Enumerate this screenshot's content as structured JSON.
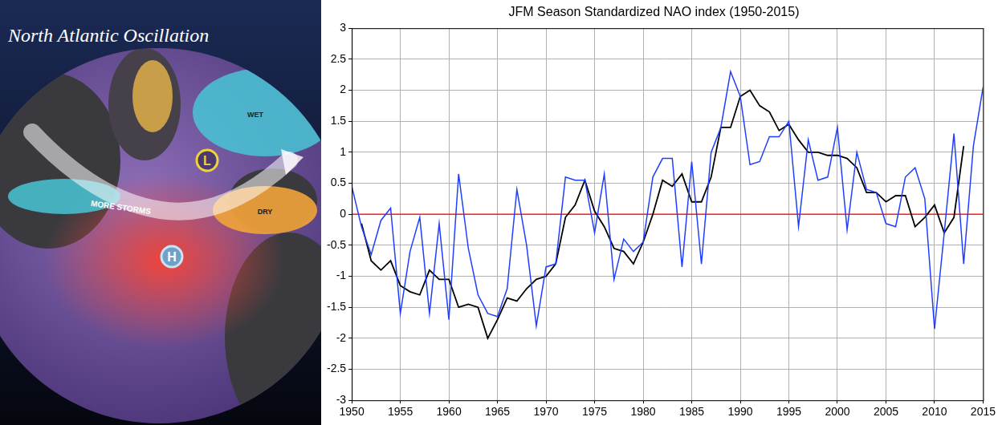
{
  "illustration": {
    "title": "North Atlantic Oscillation",
    "low": "L",
    "high": "H",
    "storms": "MORE STORMS",
    "wet": "WET",
    "dry": "DRY"
  },
  "chart_data": {
    "type": "line",
    "title": "JFM Season Standardized NAO index (1950-2015)",
    "x": [
      1950,
      1951,
      1952,
      1953,
      1954,
      1955,
      1956,
      1957,
      1958,
      1959,
      1960,
      1961,
      1962,
      1963,
      1964,
      1965,
      1966,
      1967,
      1968,
      1969,
      1970,
      1971,
      1972,
      1973,
      1974,
      1975,
      1976,
      1977,
      1978,
      1979,
      1980,
      1981,
      1982,
      1983,
      1984,
      1985,
      1986,
      1987,
      1988,
      1989,
      1990,
      1991,
      1992,
      1993,
      1994,
      1995,
      1996,
      1997,
      1998,
      1999,
      2000,
      2001,
      2002,
      2003,
      2004,
      2005,
      2006,
      2007,
      2008,
      2009,
      2010,
      2011,
      2012,
      2013,
      2014,
      2015
    ],
    "xlim": [
      1950,
      2015
    ],
    "xticks": [
      1950,
      1955,
      1960,
      1965,
      1970,
      1975,
      1980,
      1985,
      1990,
      1995,
      2000,
      2005,
      2010,
      2015
    ],
    "ylim": [
      -3,
      3
    ],
    "yticks": [
      -3,
      -2.5,
      -2,
      -1.5,
      -1,
      -0.5,
      0,
      0.5,
      1,
      1.5,
      2,
      2.5,
      3
    ],
    "grid": true,
    "series": [
      {
        "color": "#1f3fff",
        "values": [
          0.45,
          -0.2,
          -0.65,
          -0.1,
          0.1,
          -1.6,
          -0.6,
          -0.05,
          -1.6,
          -0.15,
          -1.7,
          0.65,
          -0.55,
          -1.3,
          -1.6,
          -1.65,
          -1.2,
          0.4,
          -0.5,
          -1.8,
          -0.85,
          -0.8,
          0.6,
          0.55,
          0.55,
          -0.3,
          0.65,
          -1.05,
          -0.4,
          -0.6,
          -0.45,
          0.6,
          0.9,
          0.9,
          -0.85,
          0.85,
          -0.8,
          1.0,
          1.4,
          2.3,
          1.9,
          0.8,
          0.85,
          1.25,
          1.25,
          1.5,
          -0.2,
          1.2,
          0.55,
          0.6,
          1.4,
          -0.25,
          1.0,
          0.4,
          0.35,
          -0.15,
          -0.2,
          0.6,
          0.75,
          0.25,
          -1.85,
          -0.3,
          1.3,
          -0.8,
          1.1,
          2.05
        ]
      },
      {
        "color": "#000000",
        "values": [
          null,
          -0.15,
          -0.75,
          -0.9,
          -0.75,
          -1.15,
          -1.25,
          -1.3,
          -0.9,
          -1.05,
          -1.05,
          -1.5,
          -1.45,
          -1.5,
          -2.0,
          -1.7,
          -1.35,
          -1.4,
          -1.2,
          -1.05,
          -1.0,
          -0.8,
          -0.05,
          0.15,
          0.55,
          0.05,
          -0.2,
          -0.55,
          -0.6,
          -0.8,
          -0.45,
          0.0,
          0.55,
          0.45,
          0.65,
          0.2,
          0.2,
          0.6,
          1.4,
          1.4,
          1.9,
          2.0,
          1.75,
          1.65,
          1.35,
          1.45,
          1.2,
          1.0,
          1.0,
          0.95,
          0.95,
          0.9,
          0.75,
          0.35,
          0.35,
          0.2,
          0.3,
          0.3,
          -0.2,
          -0.05,
          0.15,
          -0.3,
          -0.05,
          1.1,
          null,
          null
        ]
      },
      {
        "color": "#ff0000",
        "values": [
          0,
          0,
          0,
          0,
          0,
          0,
          0,
          0,
          0,
          0,
          0,
          0,
          0,
          0,
          0,
          0,
          0,
          0,
          0,
          0,
          0,
          0,
          0,
          0,
          0,
          0,
          0,
          0,
          0,
          0,
          0,
          0,
          0,
          0,
          0,
          0,
          0,
          0,
          0,
          0,
          0,
          0,
          0,
          0,
          0,
          0,
          0,
          0,
          0,
          0,
          0,
          0,
          0,
          0,
          0,
          0,
          0,
          0,
          0,
          0,
          0,
          0,
          0,
          0,
          0,
          0
        ]
      }
    ]
  }
}
